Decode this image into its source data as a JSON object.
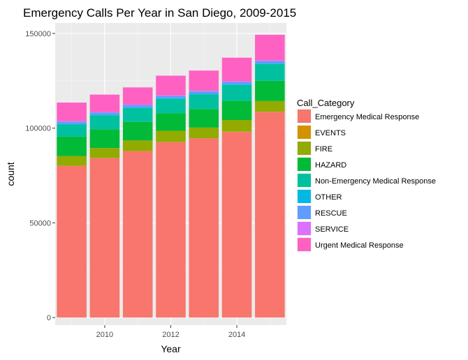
{
  "chart_data": {
    "type": "bar",
    "stacked": true,
    "title": "Emergency Calls Per Year in San Diego, 2009-2015",
    "xlabel": "Year",
    "ylabel": "count",
    "x": [
      2009,
      2010,
      2011,
      2012,
      2013,
      2014,
      2015
    ],
    "x_ticks": [
      2010,
      2012,
      2014
    ],
    "x_tick_labels": [
      "2010",
      "2012",
      "2014"
    ],
    "xlim": [
      2008.5,
      2015.5
    ],
    "y_ticks": [
      0,
      50000,
      100000,
      150000
    ],
    "y_tick_labels": [
      "0",
      "50000",
      "100000",
      "150000"
    ],
    "ylim": [
      -4000,
      155500
    ],
    "grid": true,
    "legend": {
      "title": "Call_Category",
      "position": "right"
    },
    "series": [
      {
        "name": "Emergency Medical Response",
        "color": "#F8766D",
        "values": [
          80000,
          84200,
          87800,
          92600,
          94600,
          98000,
          108500
        ]
      },
      {
        "name": "EVENTS",
        "color": "#D39200",
        "values": [
          100,
          100,
          100,
          100,
          100,
          100,
          100
        ]
      },
      {
        "name": "FIRE",
        "color": "#93AA00",
        "values": [
          5200,
          5200,
          5600,
          5900,
          5600,
          6200,
          5700
        ]
      },
      {
        "name": "HAZARD",
        "color": "#00BA38",
        "values": [
          10200,
          9900,
          9800,
          9300,
          9800,
          10200,
          10700
        ]
      },
      {
        "name": "Non-Emergency Medical Response",
        "color": "#00C19F",
        "values": [
          6400,
          7400,
          7300,
          7600,
          7700,
          8300,
          8800
        ]
      },
      {
        "name": "OTHER",
        "color": "#00B9E3",
        "values": [
          300,
          300,
          300,
          300,
          300,
          300,
          300
        ]
      },
      {
        "name": "RESCUE",
        "color": "#619CFF",
        "values": [
          1300,
          1200,
          1300,
          1300,
          1400,
          1400,
          1400
        ]
      },
      {
        "name": "SERVICE",
        "color": "#DB72FB",
        "values": [
          200,
          200,
          200,
          200,
          200,
          200,
          200
        ]
      },
      {
        "name": "Urgent Medical Response",
        "color": "#FF61C3",
        "values": [
          9800,
          9200,
          9100,
          10400,
          10700,
          12500,
          13600
        ]
      }
    ]
  }
}
